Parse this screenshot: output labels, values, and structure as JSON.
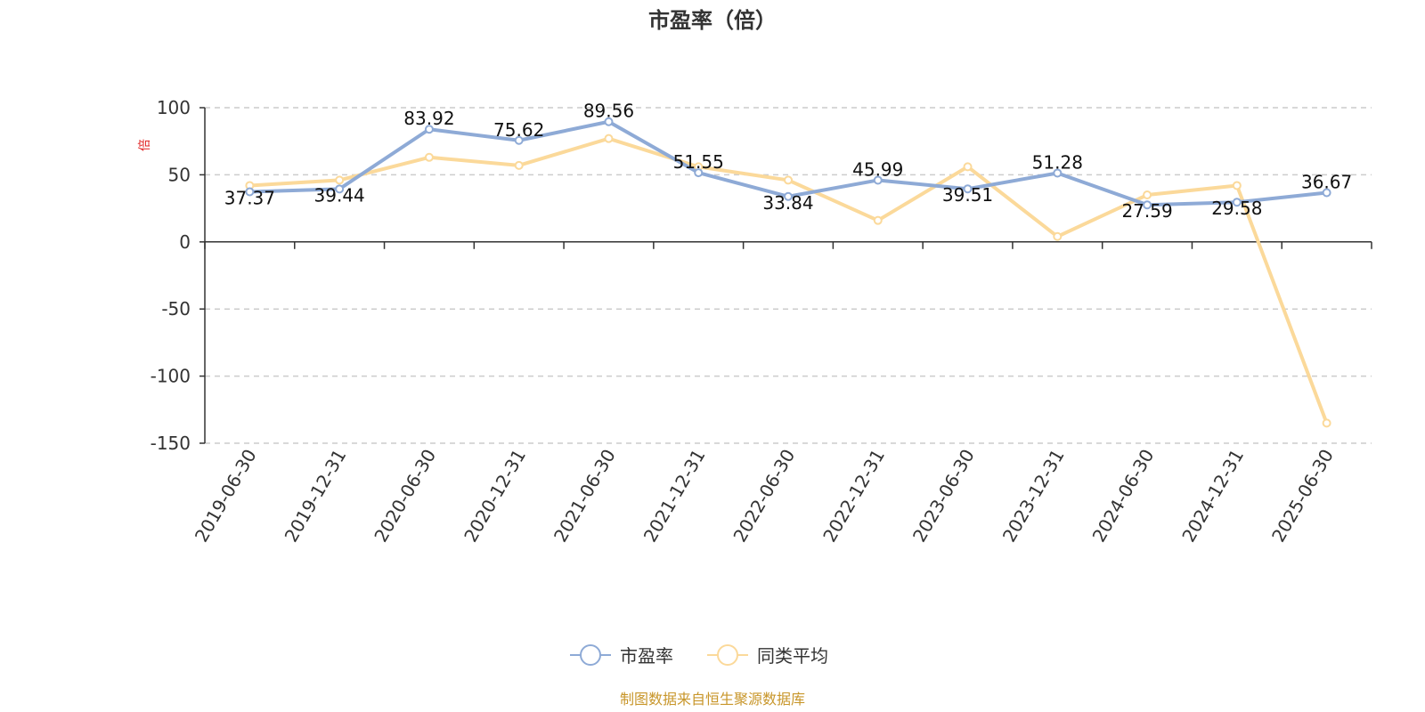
{
  "chart_data": {
    "type": "line",
    "title": "市盈率（倍）",
    "ylabel": "倍",
    "ylim": [
      -150,
      100
    ],
    "yticks": [
      100,
      50,
      0,
      -50,
      -100,
      -150
    ],
    "categories": [
      "2019-06-30",
      "2019-12-31",
      "2020-06-30",
      "2020-12-31",
      "2021-06-30",
      "2021-12-31",
      "2022-06-30",
      "2022-12-31",
      "2023-06-30",
      "2023-12-31",
      "2024-06-30",
      "2024-12-31",
      "2025-06-30"
    ],
    "series": [
      {
        "name": "市盈率",
        "color": "#8eaad6",
        "values": [
          37.37,
          39.44,
          83.92,
          75.62,
          89.56,
          51.55,
          33.84,
          45.99,
          39.51,
          51.28,
          27.59,
          29.58,
          36.67
        ],
        "labels": [
          "37.37",
          "39.44",
          "83.92",
          "75.62",
          "89.56",
          "51.55",
          "33.84",
          "45.99",
          "39.51",
          "51.28",
          "27.59",
          "29.58",
          "36.67"
        ]
      },
      {
        "name": "同类平均",
        "color": "#fbd99a",
        "values": [
          42,
          46,
          63,
          57,
          77,
          56,
          46,
          16,
          56,
          4,
          35,
          42,
          -135
        ]
      }
    ],
    "grid": true,
    "legend": "bottom-center"
  },
  "source": "制图数据来自恒生聚源数据库"
}
